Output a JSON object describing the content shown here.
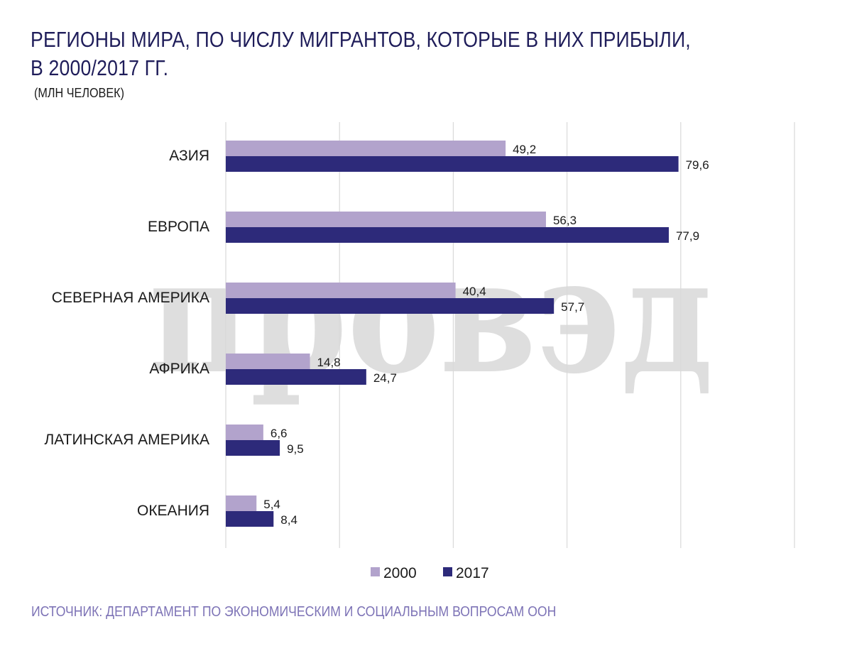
{
  "title": "РЕГИОНЫ МИРА, ПО ЧИСЛУ МИГРАНТОВ, КОТОРЫЕ В НИХ ПРИБЫЛИ, В 2000/2017 ГГ.",
  "subtitle": "(МЛН ЧЕЛОВЕК)",
  "source": "ИСТОЧНИК: ДЕПАРТАМЕНТ ПО ЭКОНОМИЧЕСКИМ И СОЦИАЛЬНЫМ ВОПРОСАМ ООН",
  "watermark_text": "провэд",
  "colors": {
    "series_2000": "#b2a3cc",
    "series_2017": "#2d2a7a",
    "title": "#1f1d5a",
    "source": "#7d73b6",
    "grid": "#d9d9d9",
    "watermark": "#c8c8c8"
  },
  "chart_data": {
    "type": "bar",
    "orientation": "horizontal",
    "categories": [
      "АЗИЯ",
      "ЕВРОПА",
      "СЕВЕРНАЯ АМЕРИКА",
      "АФРИКА",
      "ЛАТИНСКАЯ АМЕРИКА",
      "ОКЕАНИЯ"
    ],
    "series": [
      {
        "name": "2000",
        "values": [
          49.2,
          56.3,
          40.4,
          14.8,
          6.6,
          5.4
        ],
        "labels": [
          "49,2",
          "56,3",
          "40,4",
          "14,8",
          "6,6",
          "5,4"
        ]
      },
      {
        "name": "2017",
        "values": [
          79.6,
          77.9,
          57.7,
          24.7,
          9.5,
          8.4
        ],
        "labels": [
          "79,6",
          "77,9",
          "57,7",
          "24,7",
          "9,5",
          "8,4"
        ]
      }
    ],
    "xlim": [
      0,
      100
    ],
    "grid": true,
    "legend": "bottom"
  }
}
